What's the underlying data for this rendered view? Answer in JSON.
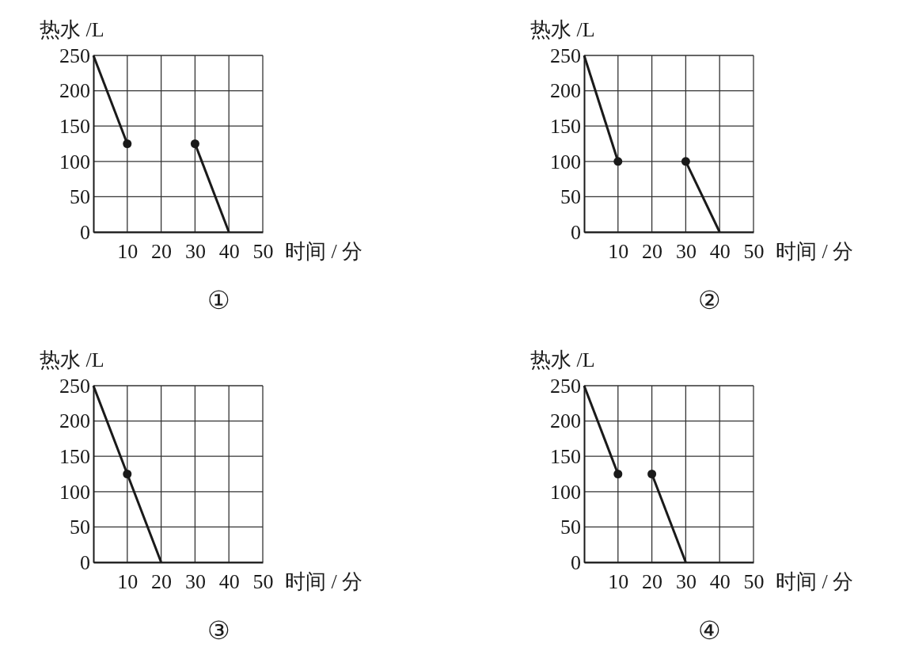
{
  "chart_data": [
    {
      "type": "line",
      "title": "①",
      "xlabel": "时间 / 分",
      "ylabel": "热水 /L",
      "xlim": [
        0,
        50
      ],
      "xticks": [
        10,
        20,
        30,
        40,
        50
      ],
      "ylim": [
        0,
        250
      ],
      "yticks": [
        0,
        50,
        100,
        150,
        200,
        250
      ],
      "grid": true,
      "series": [
        {
          "type": "line",
          "color": "#1a1a1a",
          "marker": "none",
          "x": [
            0,
            10
          ],
          "values": [
            250,
            125
          ]
        },
        {
          "type": "line",
          "color": "#1a1a1a",
          "marker": "none",
          "x": [
            30,
            40
          ],
          "values": [
            125,
            0
          ]
        },
        {
          "type": "scatter",
          "color": "#1a1a1a",
          "marker": "circle",
          "x": [
            10,
            30
          ],
          "values": [
            125,
            125
          ]
        }
      ]
    },
    {
      "type": "line",
      "title": "②",
      "xlabel": "时间 / 分",
      "ylabel": "热水 /L",
      "xlim": [
        0,
        50
      ],
      "xticks": [
        10,
        20,
        30,
        40,
        50
      ],
      "ylim": [
        0,
        250
      ],
      "yticks": [
        0,
        50,
        100,
        150,
        200,
        250
      ],
      "grid": true,
      "series": [
        {
          "type": "line",
          "color": "#1a1a1a",
          "marker": "none",
          "x": [
            0,
            10
          ],
          "values": [
            250,
            100
          ]
        },
        {
          "type": "line",
          "color": "#1a1a1a",
          "marker": "none",
          "x": [
            30,
            40
          ],
          "values": [
            100,
            0
          ]
        },
        {
          "type": "scatter",
          "color": "#1a1a1a",
          "marker": "circle",
          "x": [
            10,
            30
          ],
          "values": [
            100,
            100
          ]
        }
      ]
    },
    {
      "type": "line",
      "title": "③",
      "xlabel": "时间 / 分",
      "ylabel": "热水 /L",
      "xlim": [
        0,
        50
      ],
      "xticks": [
        10,
        20,
        30,
        40,
        50
      ],
      "ylim": [
        0,
        250
      ],
      "yticks": [
        0,
        50,
        100,
        150,
        200,
        250
      ],
      "grid": true,
      "series": [
        {
          "type": "line",
          "color": "#1a1a1a",
          "marker": "none",
          "x": [
            0,
            10,
            20
          ],
          "values": [
            250,
            125,
            0
          ]
        },
        {
          "type": "scatter",
          "color": "#1a1a1a",
          "marker": "circle",
          "x": [
            10
          ],
          "values": [
            125
          ]
        }
      ]
    },
    {
      "type": "line",
      "title": "④",
      "xlabel": "时间 / 分",
      "ylabel": "热水 /L",
      "xlim": [
        0,
        50
      ],
      "xticks": [
        10,
        20,
        30,
        40,
        50
      ],
      "ylim": [
        0,
        250
      ],
      "yticks": [
        0,
        50,
        100,
        150,
        200,
        250
      ],
      "grid": true,
      "series": [
        {
          "type": "line",
          "color": "#1a1a1a",
          "marker": "none",
          "x": [
            0,
            10
          ],
          "values": [
            250,
            125
          ]
        },
        {
          "type": "line",
          "color": "#1a1a1a",
          "marker": "none",
          "x": [
            20,
            30
          ],
          "values": [
            125,
            0
          ]
        },
        {
          "type": "scatter",
          "color": "#1a1a1a",
          "marker": "circle",
          "x": [
            10,
            20
          ],
          "values": [
            125,
            125
          ]
        }
      ]
    }
  ]
}
